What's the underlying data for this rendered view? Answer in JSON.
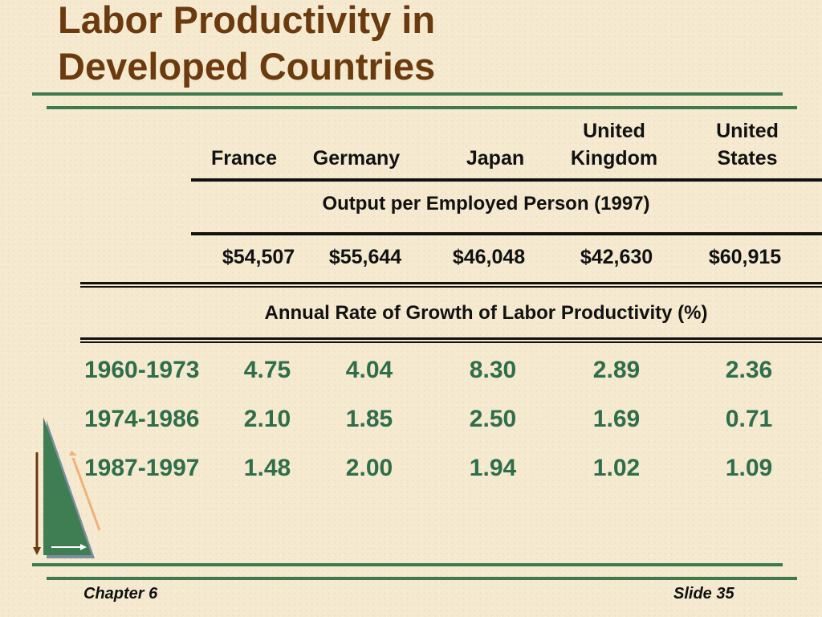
{
  "title": {
    "line1": "Labor Productivity in",
    "line2": "Developed Countries"
  },
  "table": {
    "columns": [
      {
        "line1": "",
        "line2": "France"
      },
      {
        "line1": "",
        "line2": "Germany"
      },
      {
        "line1": "",
        "line2": "Japan"
      },
      {
        "line1": "United",
        "line2": "Kingdom"
      },
      {
        "line1": "United",
        "line2": "States"
      }
    ],
    "output_heading": "Output per Employed Person (1997)",
    "output_values": [
      "$54,507",
      "$55,644",
      "$46,048",
      "$42,630",
      "$60,915"
    ],
    "growth_heading": "Annual Rate of Growth of Labor Productivity (%)",
    "growth_rows": [
      {
        "period": "1960-1973",
        "values": [
          "4.75",
          "4.04",
          "8.30",
          "2.89",
          "2.36"
        ]
      },
      {
        "period": "1974-1986",
        "values": [
          "2.10",
          "1.85",
          "2.50",
          "1.69",
          "0.71"
        ]
      },
      {
        "period": "1987-1997",
        "values": [
          "1.48",
          "2.00",
          "1.94",
          "1.02",
          "1.09"
        ]
      }
    ]
  },
  "footer": {
    "chapter": "Chapter 6",
    "slide": "Slide 35"
  },
  "colors": {
    "title": "#6b3a0e",
    "accent_green": "#3d7a4e",
    "growth_text": "#2f6e4a",
    "background": "#f5ead0"
  }
}
